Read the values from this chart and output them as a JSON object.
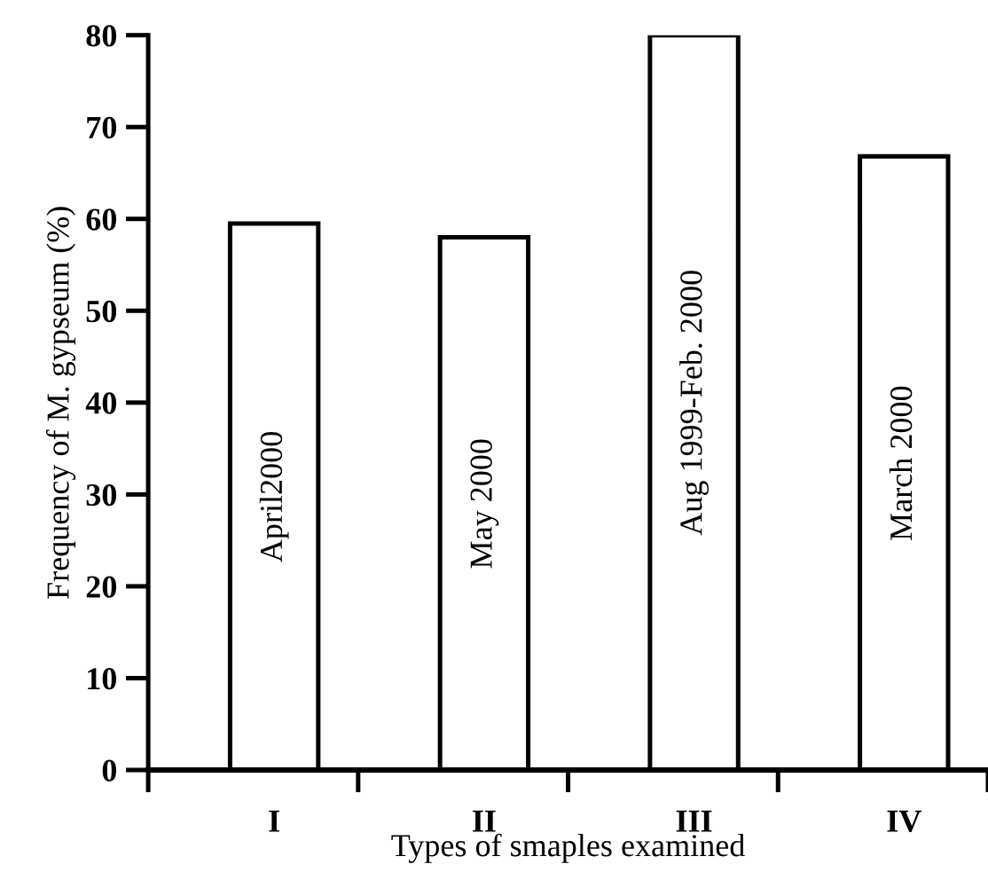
{
  "chart_data": {
    "type": "bar",
    "xlabel": "Types of smaples examined",
    "ylabel": "Frequency of M. gypseum (%)",
    "categories": [
      "I",
      "II",
      "III",
      "IV"
    ],
    "values": [
      59.5,
      58,
      80,
      66.8
    ],
    "color": "#ffffff",
    "ylim": [
      0,
      80
    ],
    "yticks": [
      0,
      10,
      20,
      30,
      40,
      50,
      60,
      70,
      80
    ],
    "grid": false,
    "legend": false,
    "annotations": [
      "April2000",
      "May 2000",
      "Aug 1999-Feb. 2000",
      "March 2000"
    ]
  }
}
